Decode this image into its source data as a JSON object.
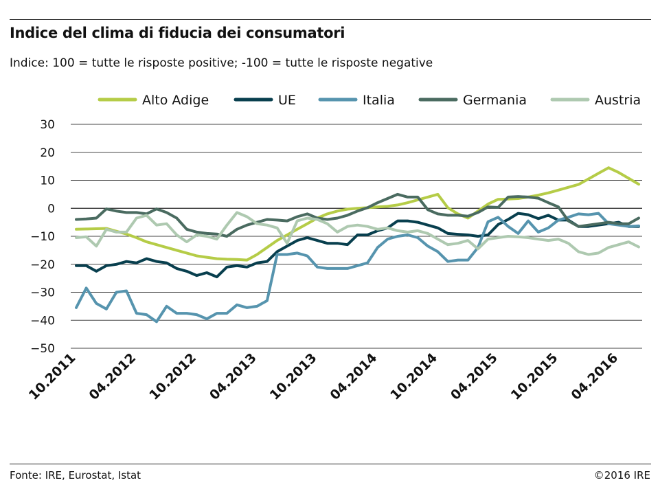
{
  "header": {
    "title": "Indice del clima di fiducia dei consumatori",
    "subtitle": "Indice: 100 = tutte le risposte positive; -100 =  tutte le risposte negative"
  },
  "footer": {
    "source": "Fonte:  IRE, Eurostat, Istat",
    "copyright": "©2016 IRE"
  },
  "chart_data": {
    "type": "line",
    "title": "Indice del clima di fiducia dei consumatori",
    "ylim": [
      -50,
      30
    ],
    "yticks": [
      30,
      20,
      10,
      0,
      -10,
      -20,
      -30,
      -40,
      -50
    ],
    "ytick_labels": [
      "30",
      "20",
      "10",
      "0",
      "−10",
      "−20",
      "−30",
      "−40",
      "−50"
    ],
    "xticks": [
      {
        "index": 0,
        "label": "10.2011"
      },
      {
        "index": 6,
        "label": "04.2012"
      },
      {
        "index": 12,
        "label": "10.2012"
      },
      {
        "index": 18,
        "label": "04.2013"
      },
      {
        "index": 24,
        "label": "10.2013"
      },
      {
        "index": 30,
        "label": "04.2014"
      },
      {
        "index": 36,
        "label": "10.2014"
      },
      {
        "index": 42,
        "label": "04.2015"
      },
      {
        "index": 48,
        "label": "10.2015"
      },
      {
        "index": 54,
        "label": "04.2016"
      }
    ],
    "grid": true,
    "legend_position": "top",
    "series": [
      {
        "name": "Alto Adige",
        "color": "#b5cc47",
        "values": [
          -7.5,
          -7.4,
          -7.3,
          -7.2,
          -8.2,
          -9.2,
          -10.5,
          -12,
          -13,
          -14,
          -15,
          -16,
          -17,
          -17.5,
          -18,
          -18.2,
          -18.3,
          -18.5,
          -16.5,
          -14,
          -11.5,
          -9.5,
          -7.5,
          -5.5,
          -3.5,
          -2,
          -1,
          -0.3,
          0,
          0.2,
          0.5,
          0.7,
          1.2,
          2,
          3,
          4,
          5,
          0.2,
          -2,
          -3.5,
          -1,
          1.5,
          3.2,
          3.3,
          3.5,
          4,
          4.7,
          5.5,
          6.5,
          7.5,
          8.5,
          10.5,
          12.5,
          14.5,
          12.8,
          10.7,
          8.6
        ]
      },
      {
        "name": "UE",
        "color": "#083f4e",
        "values": [
          -20.5,
          -20.5,
          -22.5,
          -20.5,
          -20,
          -19,
          -19.5,
          -18,
          -19,
          -19.5,
          -21.5,
          -22.5,
          -24,
          -23,
          -24.5,
          -21,
          -20.5,
          -21,
          -19.5,
          -19,
          -15.5,
          -13.5,
          -11.5,
          -10.5,
          -11.5,
          -12.5,
          -12.5,
          -13,
          -9.5,
          -9.5,
          -8,
          -7,
          -4.5,
          -4.5,
          -5,
          -6,
          -7,
          -9,
          -9.3,
          -9.5,
          -10,
          -9.5,
          -5.8,
          -4,
          -1.8,
          -2.3,
          -3.7,
          -2.5,
          -4.2,
          -4.2,
          -6.5,
          -6.5,
          -6,
          -5.5,
          -5,
          -6.5,
          -6.5
        ]
      },
      {
        "name": "Italia",
        "color": "#5694ae",
        "values": [
          -35.5,
          -28.5,
          -34,
          -36,
          -30,
          -29.5,
          -37.5,
          -38,
          -40.5,
          -35,
          -37.5,
          -37.5,
          -38,
          -39.5,
          -37.5,
          -37.5,
          -34.5,
          -35.5,
          -35,
          -33,
          -16.5,
          -16.5,
          -16,
          -17,
          -21,
          -21.5,
          -21.5,
          -21.5,
          -20.5,
          -19.5,
          -14,
          -11,
          -10,
          -9.5,
          -10.5,
          -13.5,
          -15.5,
          -19,
          -18.5,
          -18.5,
          -14,
          -4.8,
          -3.2,
          -6.5,
          -9,
          -4.5,
          -8.5,
          -7,
          -4.2,
          -3.2,
          -2,
          -2.3,
          -1.8,
          -5.5,
          -6,
          -6.5,
          -6.3
        ]
      },
      {
        "name": "Germania",
        "color": "#4a6b60",
        "values": [
          -4,
          -3.8,
          -3.5,
          -0.2,
          -1,
          -1.5,
          -1.5,
          -2,
          -0.2,
          -1.5,
          -3.5,
          -7.5,
          -8.5,
          -9,
          -9.2,
          -10,
          -7.5,
          -6,
          -5,
          -4,
          -4.2,
          -4.5,
          -3,
          -2,
          -3.5,
          -4,
          -3.5,
          -2.5,
          -1,
          0.2,
          2,
          3.5,
          5,
          4,
          4,
          -0.5,
          -2,
          -2.5,
          -2.5,
          -2.8,
          -1.5,
          0.5,
          0.3,
          4,
          4.2,
          4,
          3.6,
          2,
          0.5,
          -4.5,
          -6.5,
          -6,
          -5.5,
          -5,
          -5.5,
          -5.5,
          -3.5
        ]
      },
      {
        "name": "Austria",
        "color": "#aec9b0",
        "values": [
          -10.5,
          -10.2,
          -13.5,
          -7.5,
          -8.5,
          -8.5,
          -3.5,
          -2.5,
          -6,
          -5.5,
          -9.5,
          -12,
          -9.5,
          -10,
          -11,
          -6,
          -1.5,
          -3,
          -5.5,
          -6,
          -7,
          -12.5,
          -4.5,
          -3.5,
          -4,
          -5.5,
          -8.5,
          -6.5,
          -6,
          -6.5,
          -7.5,
          -7,
          -8,
          -8.5,
          -8,
          -9,
          -11,
          -13,
          -12.5,
          -11.5,
          -14.5,
          -11,
          -10.5,
          -10,
          -10.2,
          -10.5,
          -11,
          -11.5,
          -11,
          -12.5,
          -15.5,
          -16.5,
          -16,
          -14,
          -13,
          -12,
          -13.8
        ]
      }
    ]
  }
}
